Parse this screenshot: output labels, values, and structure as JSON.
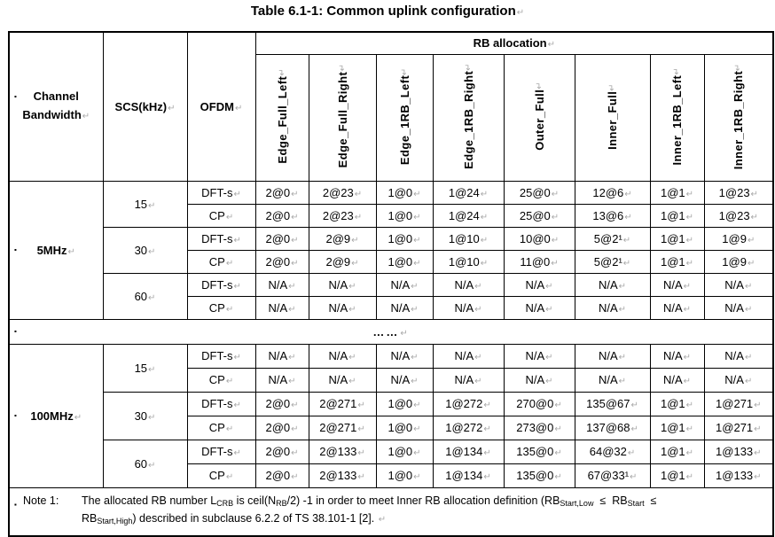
{
  "marks": {
    "pilcrow": "↵",
    "bullet": "▪"
  },
  "title": "Table 6.1-1: Common uplink configuration",
  "table": {
    "header": {
      "channel_bandwidth_line1": "Channel",
      "channel_bandwidth_line2": "Bandwidth",
      "scs": "SCS(kHz)",
      "ofdm": "OFDM",
      "rb_allocation": "RB allocation",
      "rb_columns": [
        "Edge_Full_Left",
        "Edge_Full_Right",
        "Edge_1RB_Left",
        "Edge_1RB_Right",
        "Outer_Full",
        "Inner_Full",
        "Inner_1RB_Left",
        "Inner_1RB_Right"
      ]
    },
    "sections": [
      {
        "bandwidth": "5MHz",
        "groups": [
          {
            "scs": "15",
            "rows": [
              {
                "ofdm": "DFT-s",
                "values": [
                  "2@0",
                  "2@23",
                  "1@0",
                  "1@24",
                  "25@0",
                  "12@6",
                  "1@1",
                  "1@23"
                ]
              },
              {
                "ofdm": "CP",
                "values": [
                  "2@0",
                  "2@23",
                  "1@0",
                  "1@24",
                  "25@0",
                  "13@6",
                  "1@1",
                  "1@23"
                ]
              }
            ]
          },
          {
            "scs": "30",
            "rows": [
              {
                "ofdm": "DFT-s",
                "values": [
                  "2@0",
                  "2@9",
                  "1@0",
                  "1@10",
                  "10@0",
                  "5@2¹",
                  "1@1",
                  "1@9"
                ]
              },
              {
                "ofdm": "CP",
                "values": [
                  "2@0",
                  "2@9",
                  "1@0",
                  "1@10",
                  "11@0",
                  "5@2¹",
                  "1@1",
                  "1@9"
                ]
              }
            ]
          },
          {
            "scs": "60",
            "rows": [
              {
                "ofdm": "DFT-s",
                "values": [
                  "N/A",
                  "N/A",
                  "N/A",
                  "N/A",
                  "N/A",
                  "N/A",
                  "N/A",
                  "N/A"
                ]
              },
              {
                "ofdm": "CP",
                "values": [
                  "N/A",
                  "N/A",
                  "N/A",
                  "N/A",
                  "N/A",
                  "N/A",
                  "N/A",
                  "N/A"
                ]
              }
            ]
          }
        ]
      },
      {
        "bandwidth": "100MHz",
        "groups": [
          {
            "scs": "15",
            "rows": [
              {
                "ofdm": "DFT-s",
                "values": [
                  "N/A",
                  "N/A",
                  "N/A",
                  "N/A",
                  "N/A",
                  "N/A",
                  "N/A",
                  "N/A"
                ]
              },
              {
                "ofdm": "CP",
                "values": [
                  "N/A",
                  "N/A",
                  "N/A",
                  "N/A",
                  "N/A",
                  "N/A",
                  "N/A",
                  "N/A"
                ]
              }
            ]
          },
          {
            "scs": "30",
            "rows": [
              {
                "ofdm": "DFT-s",
                "values": [
                  "2@0",
                  "2@271",
                  "1@0",
                  "1@272",
                  "270@0",
                  "135@67",
                  "1@1",
                  "1@271"
                ]
              },
              {
                "ofdm": "CP",
                "values": [
                  "2@0",
                  "2@271",
                  "1@0",
                  "1@272",
                  "273@0",
                  "137@68",
                  "1@1",
                  "1@271"
                ]
              }
            ]
          },
          {
            "scs": "60",
            "rows": [
              {
                "ofdm": "DFT-s",
                "values": [
                  "2@0",
                  "2@133",
                  "1@0",
                  "1@134",
                  "135@0",
                  "64@32",
                  "1@1",
                  "1@133"
                ]
              },
              {
                "ofdm": "CP",
                "values": [
                  "2@0",
                  "2@133",
                  "1@0",
                  "1@134",
                  "135@0",
                  "67@33¹",
                  "1@1",
                  "1@133"
                ]
              }
            ]
          }
        ]
      }
    ],
    "ellipsis_row": "……",
    "note": {
      "label": "Note 1:",
      "segments": [
        {
          "t": "The allocated RB number L"
        },
        {
          "sub": "CRB"
        },
        {
          "t": " is ceil(N"
        },
        {
          "sub": "RB"
        },
        {
          "t": "/2) -1 in order to meet Inner RB allocation definition (RB"
        },
        {
          "sub": "Start,Low"
        },
        {
          "t": "  ≤  RB"
        },
        {
          "sub": "Start"
        },
        {
          "t": "  ≤"
        },
        {
          "br": true
        },
        {
          "t": "RB"
        },
        {
          "sub": "Start,High"
        },
        {
          "t": ") described in subclause 6.2.2 of TS 38.101-1 [2]. "
        },
        {
          "pm": true
        }
      ]
    }
  }
}
